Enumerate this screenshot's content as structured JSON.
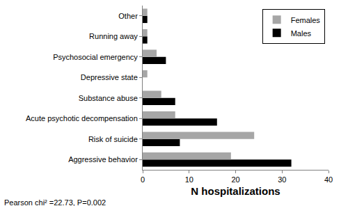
{
  "chart_data": {
    "type": "bar",
    "orientation": "horizontal",
    "categories": [
      "Aggressive behavior",
      "Risk of suicide",
      "Acute psychotic decompensation",
      "Substance abuse",
      "Depressive state",
      "Psychosocial emergency",
      "Running away",
      "Other"
    ],
    "series": [
      {
        "name": "Females",
        "color": "#a6a6a6",
        "values": [
          19,
          24,
          7,
          4,
          1,
          3,
          1,
          1
        ]
      },
      {
        "name": "Males",
        "color": "#000000",
        "values": [
          32,
          8,
          16,
          7,
          0,
          5,
          1,
          1
        ]
      }
    ],
    "x_label": "N hospitalizations",
    "xlim": [
      0,
      40
    ],
    "xticks": [
      0,
      10,
      20,
      30,
      40
    ],
    "annotations": [
      "Pearson chi² =22.73, P=0.002"
    ],
    "legend": "top right",
    "grid": false
  }
}
